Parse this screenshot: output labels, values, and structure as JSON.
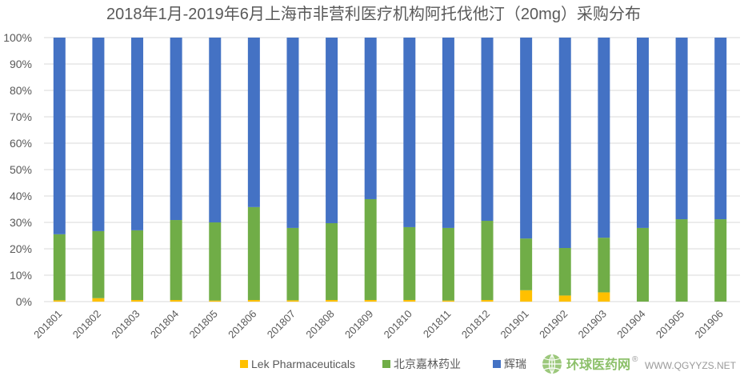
{
  "chart_data": {
    "type": "bar",
    "stacked": "percent",
    "title": "2018年1月-2019年6月上海市非营利医疗机构阿托伐他汀（20mg）采购分布",
    "xlabel": "",
    "ylabel": "",
    "ylim": [
      0,
      100
    ],
    "yticks": [
      "0%",
      "10%",
      "20%",
      "30%",
      "40%",
      "50%",
      "60%",
      "70%",
      "80%",
      "90%",
      "100%"
    ],
    "grid": true,
    "legend_position": "bottom",
    "categories": [
      "201801",
      "201802",
      "201803",
      "201804",
      "201805",
      "201806",
      "201807",
      "201808",
      "201809",
      "201810",
      "201811",
      "201812",
      "201901",
      "201902",
      "201903",
      "201904",
      "201905",
      "201906"
    ],
    "series": [
      {
        "name": "Lek Pharmaceuticals",
        "color": "#ffc000",
        "values": [
          0.5,
          1.3,
          0.6,
          0.6,
          0.4,
          0.6,
          0.5,
          0.6,
          0.6,
          0.6,
          0.4,
          0.6,
          4.3,
          2.3,
          3.5,
          0,
          0,
          0
        ]
      },
      {
        "name": "北京嘉林药业",
        "color": "#70ad47",
        "values": [
          25.0,
          25.4,
          26.4,
          30.3,
          29.6,
          35.2,
          27.4,
          29.1,
          38.2,
          27.6,
          27.5,
          30.0,
          19.6,
          18.0,
          20.7,
          27.9,
          31.2,
          31.2
        ]
      },
      {
        "name": "辉瑞",
        "color": "#4472c4",
        "values": [
          74.5,
          73.3,
          73.0,
          69.1,
          70.0,
          64.2,
          72.1,
          70.3,
          61.2,
          71.8,
          72.1,
          69.4,
          76.1,
          79.7,
          75.8,
          72.1,
          68.8,
          68.8
        ]
      }
    ]
  },
  "watermark": {
    "name_cn": "环球医药网",
    "url": "WWW.QGYYZS.NET",
    "registered": "®"
  }
}
